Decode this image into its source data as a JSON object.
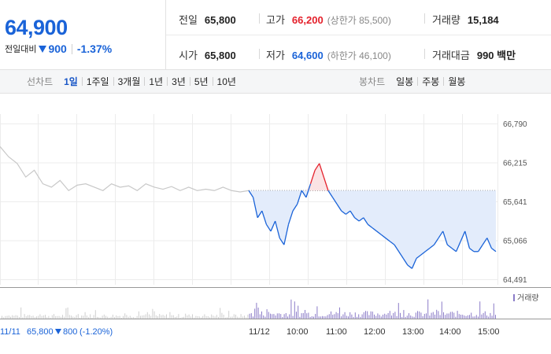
{
  "summary": {
    "price": "64,900",
    "diff_label": "전일대비",
    "diff_value": "900",
    "diff_rate": "-1.37%",
    "prev_close": {
      "label": "전일",
      "value": "65,800"
    },
    "open": {
      "label": "시가",
      "value": "65,800"
    },
    "high": {
      "label": "고가",
      "value": "66,200",
      "limit": "(상한가 85,500)"
    },
    "low": {
      "label": "저가",
      "value": "64,600",
      "limit": "(하한가 46,100)"
    },
    "volume": {
      "label": "거래량",
      "value": "15,184"
    },
    "amount": {
      "label": "거래대금",
      "value": "990 백만"
    }
  },
  "line_tabs": {
    "title": "선차트",
    "items": [
      {
        "label": "1일",
        "selected": true
      },
      {
        "label": "1주일",
        "selected": false
      },
      {
        "label": "3개월",
        "selected": false
      },
      {
        "label": "1년",
        "selected": false
      },
      {
        "label": "3년",
        "selected": false
      },
      {
        "label": "5년",
        "selected": false
      },
      {
        "label": "10년",
        "selected": false
      }
    ]
  },
  "candle_tabs": {
    "title": "봉차트",
    "items": [
      {
        "label": "일봉"
      },
      {
        "label": "주봉"
      },
      {
        "label": "월봉"
      }
    ]
  },
  "colors": {
    "rise": "#e4202b",
    "fall": "#1a63d8",
    "prev_day_line": "#c8c8c8",
    "fill_below": "#e3ecfb",
    "volume": "#8b7cc8"
  },
  "chart_data": {
    "type": "line",
    "y_ticks": [
      "66,790",
      "66,215",
      "65,641",
      "65,066",
      "64,491"
    ],
    "ylim": [
      64491,
      66790
    ],
    "reference_price": 65800,
    "x_ticks": [
      "11/12",
      "10:00",
      "11:00",
      "12:00",
      "13:00",
      "14:00",
      "15:00"
    ],
    "volume_legend": "거래량",
    "prev_day_info": {
      "date": "11/11",
      "close": "65,800",
      "change": "800",
      "rate": "(-1.20%)"
    },
    "prev_day_series": [
      66450,
      66300,
      66200,
      66000,
      66100,
      65900,
      65850,
      65950,
      65800,
      65880,
      65900,
      65850,
      65800,
      65900,
      65850,
      65870,
      65800,
      65900,
      65850,
      65820,
      65860,
      65800,
      65850,
      65800,
      65820,
      65800,
      65850,
      65800,
      65780,
      65800
    ],
    "today_series": [
      65800,
      65700,
      65400,
      65500,
      65300,
      65200,
      65350,
      65100,
      65000,
      65300,
      65500,
      65600,
      65800,
      65700,
      65900,
      66100,
      66200,
      66000,
      65800,
      65700,
      65600,
      65500,
      65450,
      65500,
      65400,
      65350,
      65400,
      65300,
      65250,
      65200,
      65150,
      65100,
      65050,
      65000,
      64900,
      64800,
      64700,
      64650,
      64800,
      64850,
      64900,
      64950,
      65000,
      65100,
      65200,
      65000,
      64950,
      64900,
      65050,
      65200,
      64950,
      64900,
      64900,
      65000,
      65100,
      64950,
      64900
    ]
  }
}
